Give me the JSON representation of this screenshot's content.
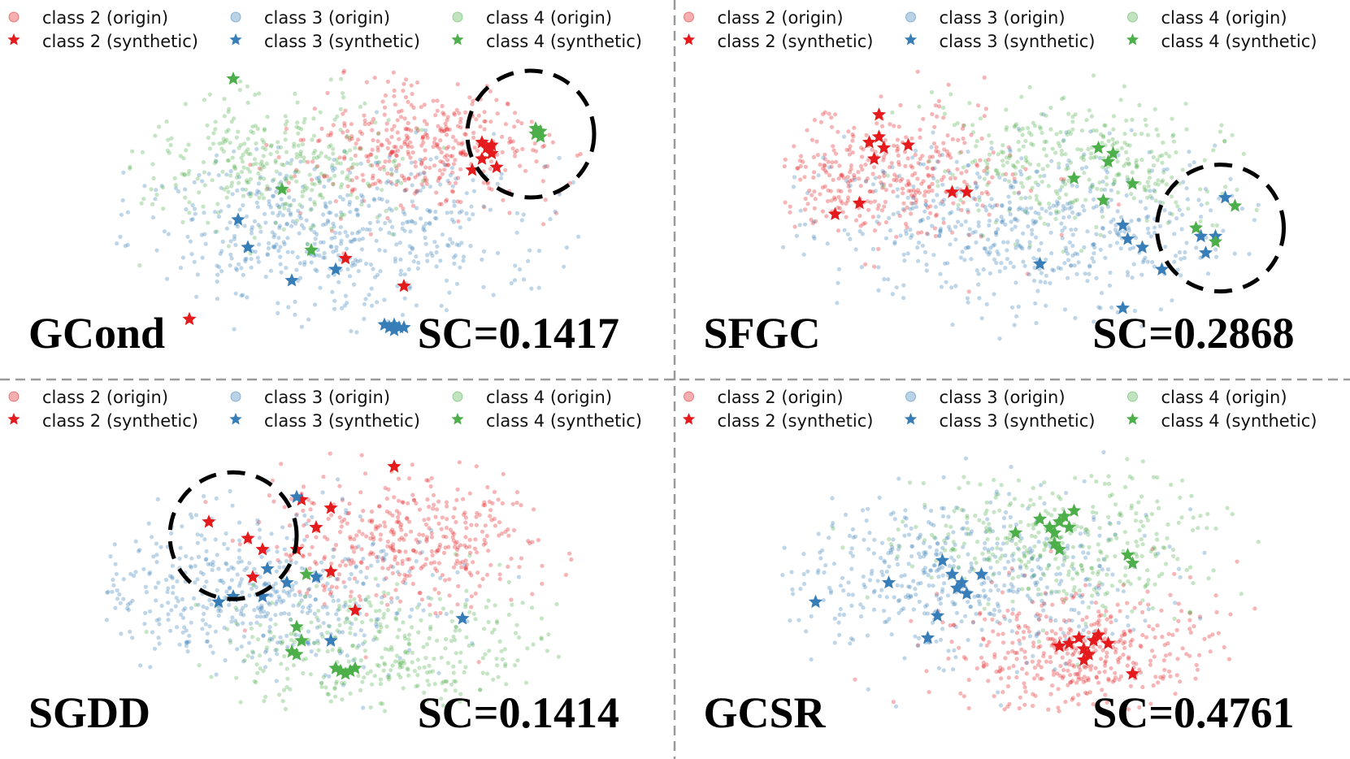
{
  "colors": {
    "class2": "#e41a1c",
    "class3": "#377eb8",
    "class4": "#4daf4a"
  },
  "legend": [
    {
      "label": "class 2 (origin)",
      "marker": "dot",
      "cls": "class2"
    },
    {
      "label": "class 3 (origin)",
      "marker": "dot",
      "cls": "class3"
    },
    {
      "label": "class 4 (origin)",
      "marker": "dot",
      "cls": "class4"
    },
    {
      "label": "class 2 (synthetic)",
      "marker": "star",
      "cls": "class2"
    },
    {
      "label": "class 3 (synthetic)",
      "marker": "star",
      "cls": "class3"
    },
    {
      "label": "class 4 (synthetic)",
      "marker": "star",
      "cls": "class4"
    }
  ],
  "chart_data": [
    {
      "type": "scatter",
      "method": "GCond",
      "score_text": "SC=0.1417",
      "sc": 0.1417,
      "xlim": [
        0,
        100
      ],
      "ylim": [
        0,
        100
      ],
      "clusters": [
        {
          "cls": "class2",
          "cx": 66,
          "cy": 70,
          "sx": 13,
          "sy": 12,
          "n": 420
        },
        {
          "cls": "class3",
          "cx": 48,
          "cy": 38,
          "sx": 22,
          "sy": 15,
          "n": 560
        },
        {
          "cls": "class4",
          "cx": 36,
          "cy": 66,
          "sx": 14,
          "sy": 12,
          "n": 330
        }
      ],
      "synthetic": {
        "class2": [
          [
            78,
            72
          ],
          [
            79,
            70
          ],
          [
            80,
            68
          ],
          [
            78,
            66
          ],
          [
            76,
            62
          ],
          [
            81,
            63
          ],
          [
            18,
            8
          ],
          [
            50,
            30
          ],
          [
            62,
            20
          ],
          [
            80,
            71
          ]
        ],
        "class3": [
          [
            28,
            44
          ],
          [
            30,
            34
          ],
          [
            48,
            26
          ],
          [
            39,
            22
          ],
          [
            58,
            6
          ],
          [
            59,
            5
          ],
          [
            60,
            6
          ],
          [
            61,
            5
          ],
          [
            62,
            5
          ],
          [
            60,
            4
          ]
        ],
        "class4": [
          [
            27,
            95
          ],
          [
            37,
            55
          ],
          [
            43,
            33
          ],
          [
            89,
            77
          ],
          [
            90,
            74
          ],
          [
            89,
            75
          ],
          [
            90,
            76
          ]
        ]
      },
      "highlight": {
        "x": 88,
        "y": 75,
        "r": 13
      }
    },
    {
      "type": "scatter",
      "method": "SFGC",
      "score_text": "SC=0.2868",
      "sc": 0.2868,
      "xlim": [
        0,
        100
      ],
      "ylim": [
        0,
        100
      ],
      "clusters": [
        {
          "cls": "class2",
          "cx": 24,
          "cy": 60,
          "sx": 13,
          "sy": 12,
          "n": 380
        },
        {
          "cls": "class3",
          "cx": 52,
          "cy": 40,
          "sx": 22,
          "sy": 15,
          "n": 560
        },
        {
          "cls": "class4",
          "cx": 64,
          "cy": 64,
          "sx": 15,
          "sy": 12,
          "n": 340
        }
      ],
      "synthetic": {
        "class2": [
          [
            21,
            82
          ],
          [
            19,
            72
          ],
          [
            21,
            74
          ],
          [
            22,
            70
          ],
          [
            27,
            71
          ],
          [
            20,
            66
          ],
          [
            36,
            54
          ],
          [
            39,
            54
          ],
          [
            17,
            50
          ],
          [
            12,
            46
          ]
        ],
        "class3": [
          [
            71,
            42
          ],
          [
            72,
            37
          ],
          [
            75,
            34
          ],
          [
            87,
            38
          ],
          [
            90,
            38
          ],
          [
            92,
            52
          ],
          [
            88,
            32
          ],
          [
            79,
            26
          ],
          [
            54,
            28
          ],
          [
            71,
            12
          ]
        ],
        "class4": [
          [
            66,
            70
          ],
          [
            69,
            68
          ],
          [
            68,
            65
          ],
          [
            61,
            59
          ],
          [
            73,
            57
          ],
          [
            67,
            51
          ],
          [
            94,
            49
          ],
          [
            90,
            36
          ],
          [
            86,
            41
          ]
        ]
      },
      "highlight": {
        "x": 91,
        "y": 41,
        "r": 13
      }
    },
    {
      "type": "scatter",
      "method": "SGDD",
      "score_text": "SC=0.1414",
      "sc": 0.1414,
      "xlim": [
        0,
        100
      ],
      "ylim": [
        0,
        100
      ],
      "clusters": [
        {
          "cls": "class2",
          "cx": 62,
          "cy": 66,
          "sx": 15,
          "sy": 12,
          "n": 420
        },
        {
          "cls": "class3",
          "cx": 30,
          "cy": 46,
          "sx": 19,
          "sy": 14,
          "n": 520
        },
        {
          "cls": "class4",
          "cx": 58,
          "cy": 26,
          "sx": 18,
          "sy": 12,
          "n": 360
        }
      ],
      "synthetic": {
        "class2": [
          [
            22,
            72
          ],
          [
            30,
            66
          ],
          [
            33,
            62
          ],
          [
            40,
            62
          ],
          [
            31,
            52
          ],
          [
            44,
            70
          ],
          [
            60,
            92
          ],
          [
            47,
            77
          ],
          [
            47,
            54
          ],
          [
            52,
            40
          ],
          [
            41,
            80
          ]
        ],
        "class3": [
          [
            40,
            81
          ],
          [
            34,
            55
          ],
          [
            38,
            50
          ],
          [
            27,
            45
          ],
          [
            24,
            43
          ],
          [
            33,
            45
          ],
          [
            44,
            52
          ],
          [
            47,
            29
          ],
          [
            74,
            37
          ]
        ],
        "class4": [
          [
            40,
            34
          ],
          [
            39,
            25
          ],
          [
            40,
            24
          ],
          [
            48,
            19
          ],
          [
            49,
            18
          ],
          [
            50,
            17
          ],
          [
            51,
            18
          ],
          [
            52,
            19
          ],
          [
            41,
            29
          ],
          [
            42,
            53
          ]
        ]
      },
      "highlight": {
        "x": 27,
        "y": 67,
        "r": 13
      }
    },
    {
      "type": "scatter",
      "method": "GCSR",
      "score_text": "SC=0.4761",
      "sc": 0.4761,
      "xlim": [
        0,
        100
      ],
      "ylim": [
        0,
        100
      ],
      "clusters": [
        {
          "cls": "class2",
          "cx": 62,
          "cy": 25,
          "sx": 14,
          "sy": 11,
          "n": 420
        },
        {
          "cls": "class3",
          "cx": 38,
          "cy": 52,
          "sx": 19,
          "sy": 15,
          "n": 520
        },
        {
          "cls": "class4",
          "cx": 60,
          "cy": 66,
          "sx": 17,
          "sy": 12,
          "n": 360
        }
      ],
      "synthetic": {
        "class2": [
          [
            60,
            28
          ],
          [
            62,
            30
          ],
          [
            63,
            26
          ],
          [
            64,
            24
          ],
          [
            65,
            29
          ],
          [
            66,
            31
          ],
          [
            68,
            28
          ],
          [
            58,
            27
          ],
          [
            63,
            22
          ],
          [
            73,
            17
          ]
        ],
        "class3": [
          [
            34,
            58
          ],
          [
            36,
            53
          ],
          [
            37,
            48
          ],
          [
            38,
            50
          ],
          [
            39,
            46
          ],
          [
            42,
            53
          ],
          [
            23,
            50
          ],
          [
            33,
            38
          ],
          [
            31,
            30
          ],
          [
            8,
            43
          ]
        ],
        "class4": [
          [
            54,
            73
          ],
          [
            56,
            70
          ],
          [
            57,
            68
          ],
          [
            58,
            72
          ],
          [
            59,
            74
          ],
          [
            60,
            70
          ],
          [
            61,
            76
          ],
          [
            57,
            64
          ],
          [
            58,
            62
          ],
          [
            72,
            60
          ],
          [
            73,
            57
          ],
          [
            49,
            68
          ]
        ]
      },
      "highlight": null
    }
  ]
}
